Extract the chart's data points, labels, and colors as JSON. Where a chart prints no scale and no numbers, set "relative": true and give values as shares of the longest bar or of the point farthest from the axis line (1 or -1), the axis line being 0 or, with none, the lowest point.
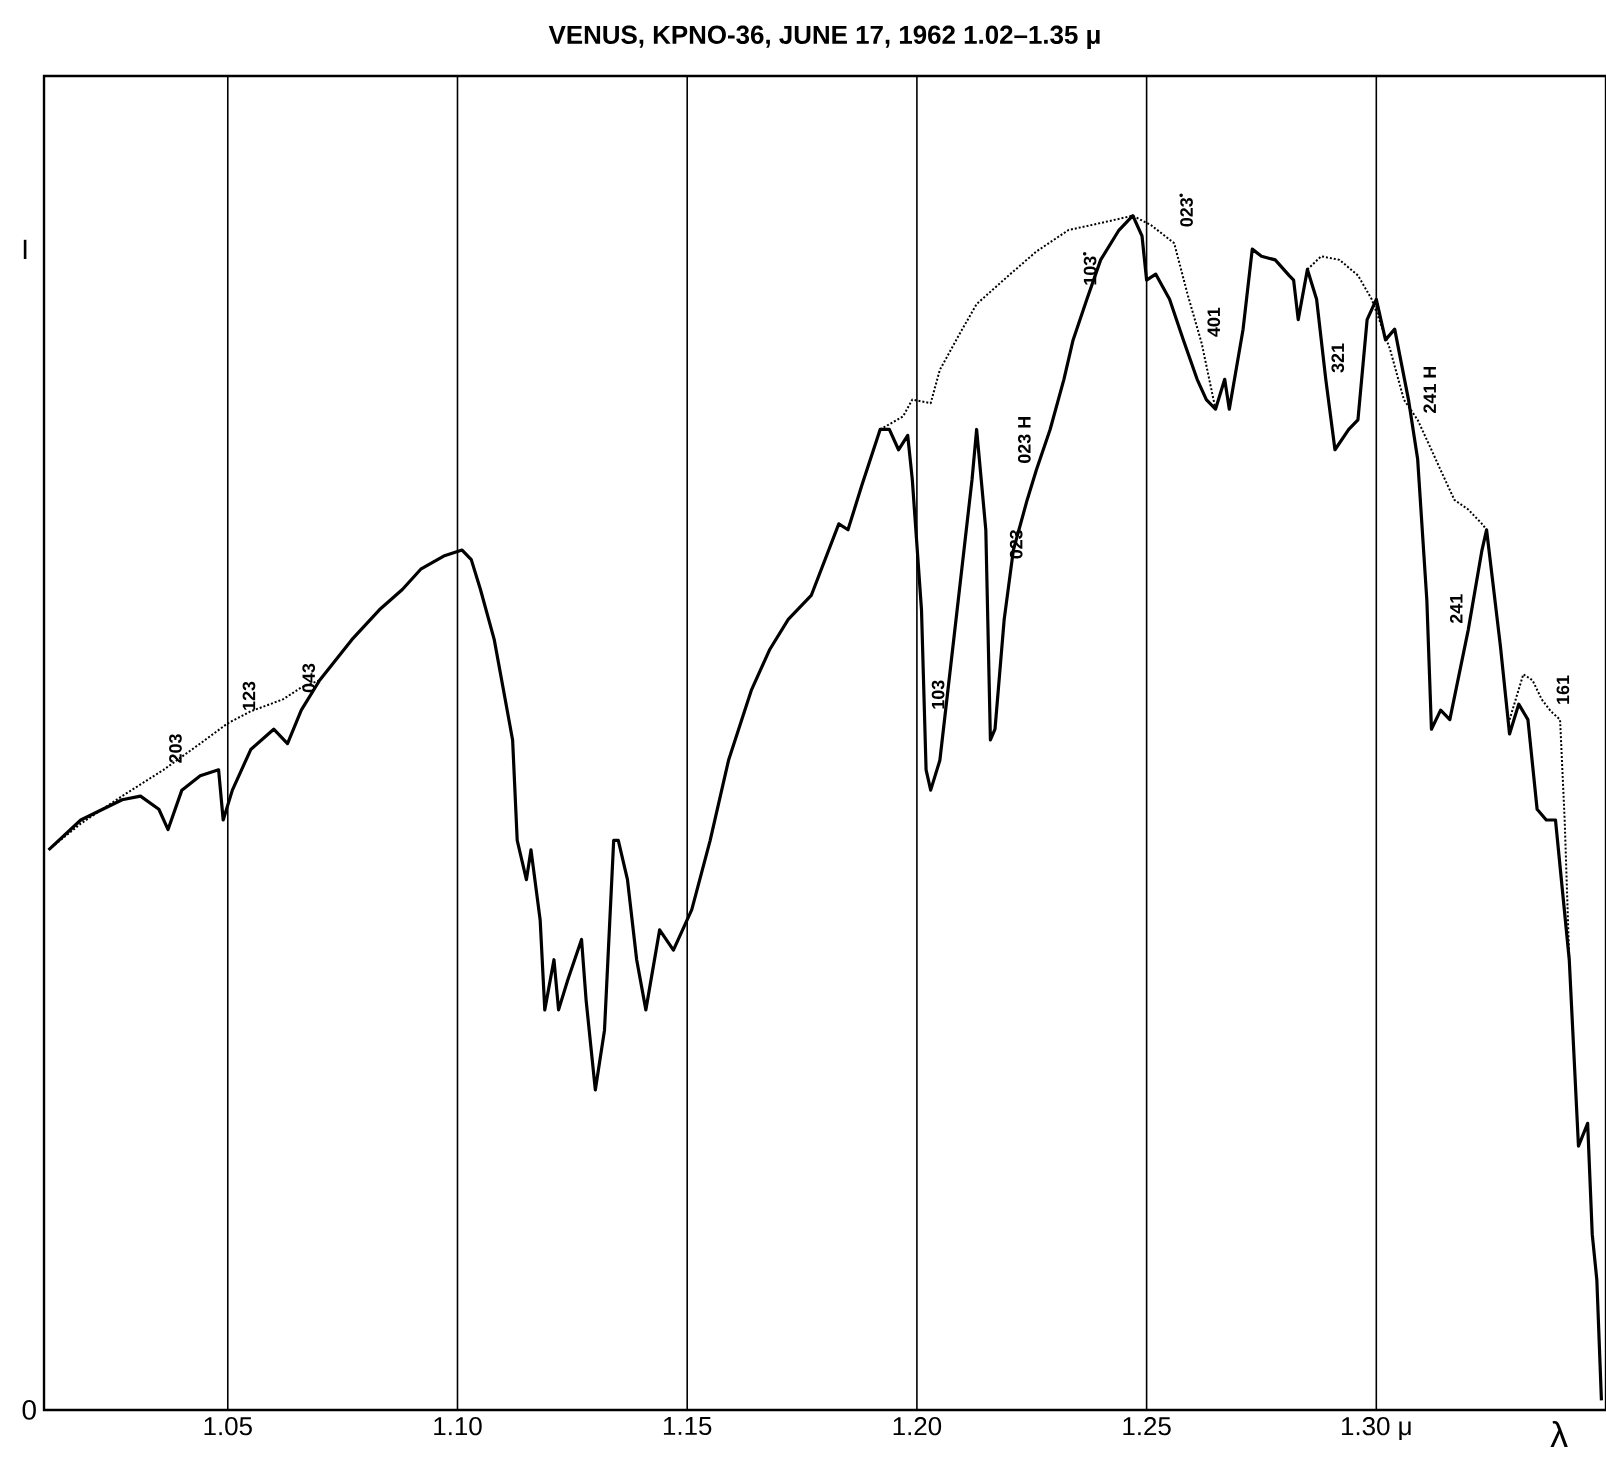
{
  "chart_data": {
    "type": "line",
    "title": "VENUS, KPNO-36, JUNE 17, 1962  1.02–1.35 μ",
    "xlabel": "λ",
    "ylabel": "I",
    "relative": true,
    "xlim": [
      1.01,
      1.35
    ],
    "xticks": [
      {
        "value": 1.05,
        "label": "1.05"
      },
      {
        "value": 1.1,
        "label": "1.10"
      },
      {
        "value": 1.15,
        "label": "1.15"
      },
      {
        "value": 1.2,
        "label": "1.20"
      },
      {
        "value": 1.25,
        "label": "1.25"
      },
      {
        "value": 1.3,
        "label": "1.30 μ"
      }
    ],
    "grid": "x",
    "series": [
      {
        "color": "#000000",
        "line_style": "solid",
        "x": [
          1.011,
          1.018,
          1.027,
          1.031,
          1.035,
          1.037,
          1.04,
          1.044,
          1.048,
          1.049,
          1.051,
          1.055,
          1.06,
          1.063,
          1.066,
          1.07,
          1.077,
          1.083,
          1.088,
          1.092,
          1.097,
          1.101,
          1.103,
          1.105,
          1.108,
          1.11,
          1.112,
          1.113,
          1.115,
          1.116,
          1.118,
          1.119,
          1.121,
          1.122,
          1.124,
          1.127,
          1.128,
          1.13,
          1.132,
          1.134,
          1.135,
          1.137,
          1.139,
          1.141,
          1.144,
          1.147,
          1.151,
          1.155,
          1.159,
          1.164,
          1.168,
          1.172,
          1.177,
          1.18,
          1.183,
          1.185,
          1.188,
          1.192,
          1.194,
          1.196,
          1.198,
          1.199,
          1.201,
          1.202,
          1.203,
          1.205,
          1.207,
          1.209,
          1.212,
          1.213,
          1.215,
          1.216,
          1.217,
          1.219,
          1.221,
          1.224,
          1.226,
          1.229,
          1.232,
          1.234,
          1.237,
          1.24,
          1.244,
          1.247,
          1.249,
          1.25,
          1.252,
          1.255,
          1.258,
          1.261,
          1.263,
          1.265,
          1.267,
          1.268,
          1.271,
          1.273,
          1.275,
          1.278,
          1.281,
          1.282,
          1.283,
          1.285,
          1.287,
          1.289,
          1.291,
          1.294,
          1.296,
          1.298,
          1.3,
          1.302,
          1.304,
          1.307,
          1.309,
          1.311,
          1.312,
          1.314,
          1.316,
          1.32,
          1.323,
          1.324,
          1.327,
          1.329,
          1.331,
          1.333,
          1.335,
          1.337,
          1.339,
          1.342,
          1.344,
          1.346,
          1.347,
          1.348,
          1.349
        ],
        "values": [
          0.469,
          0.494,
          0.511,
          0.514,
          0.503,
          0.486,
          0.519,
          0.531,
          0.536,
          0.494,
          0.519,
          0.553,
          0.57,
          0.558,
          0.586,
          0.611,
          0.645,
          0.67,
          0.687,
          0.704,
          0.715,
          0.72,
          0.712,
          0.687,
          0.645,
          0.603,
          0.561,
          0.477,
          0.444,
          0.469,
          0.41,
          0.335,
          0.377,
          0.335,
          0.36,
          0.394,
          0.343,
          0.268,
          0.318,
          0.477,
          0.477,
          0.444,
          0.377,
          0.335,
          0.402,
          0.385,
          0.419,
          0.477,
          0.544,
          0.603,
          0.637,
          0.662,
          0.682,
          0.712,
          0.742,
          0.737,
          0.774,
          0.821,
          0.821,
          0.804,
          0.816,
          0.779,
          0.67,
          0.536,
          0.519,
          0.544,
          0.611,
          0.678,
          0.779,
          0.821,
          0.737,
          0.561,
          0.57,
          0.662,
          0.72,
          0.762,
          0.787,
          0.821,
          0.863,
          0.896,
          0.93,
          0.963,
          0.988,
          1.0,
          0.983,
          0.946,
          0.951,
          0.93,
          0.896,
          0.863,
          0.846,
          0.838,
          0.863,
          0.838,
          0.905,
          0.972,
          0.966,
          0.963,
          0.95,
          0.946,
          0.913,
          0.955,
          0.93,
          0.863,
          0.804,
          0.821,
          0.829,
          0.913,
          0.93,
          0.896,
          0.905,
          0.846,
          0.796,
          0.678,
          0.57,
          0.586,
          0.578,
          0.653,
          0.72,
          0.737,
          0.64,
          0.566,
          0.591,
          0.578,
          0.503,
          0.494,
          0.494,
          0.377,
          0.221,
          0.24,
          0.147,
          0.109,
          0.008
        ]
      },
      {
        "color": "#000000",
        "line_style": "dotted",
        "x": [
          1.011,
          1.018,
          1.027,
          1.036,
          1.044,
          1.05,
          1.055,
          1.062,
          1.066,
          1.07,
          1.08,
          1.192,
          1.197,
          1.199,
          1.203,
          1.205,
          1.209,
          1.213,
          1.22,
          1.226,
          1.233,
          1.239,
          1.247,
          1.251,
          1.256,
          1.259,
          1.262,
          1.265,
          1.275,
          1.285,
          1.288,
          1.292,
          1.296,
          1.299,
          1.303,
          1.306,
          1.309,
          1.312,
          1.314,
          1.317,
          1.32,
          1.323,
          1.324,
          1.326,
          1.329,
          1.332,
          1.334,
          1.336,
          1.338,
          1.34,
          1.341,
          1.342
        ],
        "values": [
          0.469,
          0.491,
          0.514,
          0.536,
          0.558,
          0.575,
          0.585,
          0.595,
          0.605,
          0.611,
          null,
          0.821,
          0.832,
          0.846,
          0.843,
          0.871,
          0.899,
          0.926,
          0.95,
          0.97,
          0.988,
          0.993,
          1.0,
          0.992,
          0.977,
          0.933,
          0.893,
          0.838,
          null,
          0.955,
          0.966,
          0.963,
          0.95,
          0.93,
          0.888,
          0.846,
          0.829,
          0.804,
          0.787,
          0.762,
          0.754,
          0.742,
          0.737,
          null,
          0.578,
          0.616,
          0.611,
          0.595,
          0.585,
          0.578,
          0.494,
          0.377
        ]
      }
    ],
    "annotations": [
      {
        "text": "203",
        "x": 1.036,
        "y": 0.536
      },
      {
        "text": "123",
        "x": 1.052,
        "y": 0.58
      },
      {
        "text": "043",
        "x": 1.065,
        "y": 0.595
      },
      {
        "text": "103",
        "x": 1.202,
        "y": 0.581
      },
      {
        "text": "023",
        "x": 1.219,
        "y": 0.707
      },
      {
        "text": "023 H",
        "x": 1.226,
        "y": 0.787
      },
      {
        "text": "103$^{•}$",
        "x": 1.235,
        "y": 0.936
      },
      {
        "text": "023$^{•}$",
        "x": 1.256,
        "y": 0.985
      },
      {
        "text": "401",
        "x": 1.262,
        "y": 0.893
      },
      {
        "text": "321",
        "x": 1.289,
        "y": 0.863
      },
      {
        "text": "241 H",
        "x": 1.309,
        "y": 0.829
      },
      {
        "text": "241",
        "x": 1.32,
        "y": 0.653
      },
      {
        "text": "161",
        "x": 1.338,
        "y": 0.585
      },
      "0"
    ]
  }
}
